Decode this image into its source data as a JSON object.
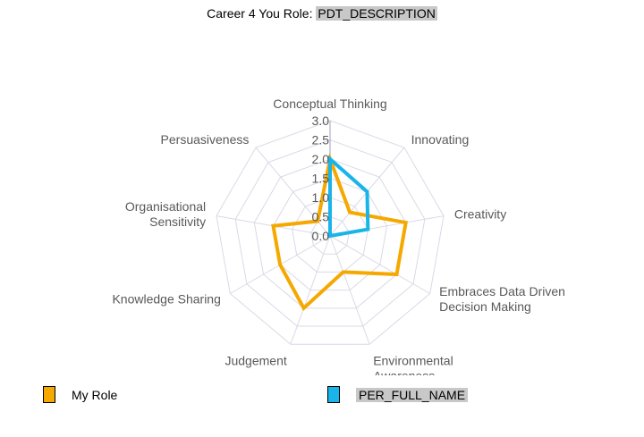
{
  "title": {
    "prefix": "Career 4 You Role:",
    "field": "PDT_DESCRIPTION"
  },
  "chart_data": {
    "type": "radar",
    "axes": [
      "Conceptual Thinking",
      "Innovating",
      "Creativity",
      "Embraces Data Driven Decision Making",
      "Environmental Awareness",
      "Judgement",
      "Knowledge Sharing",
      "Organisational Sensitivity",
      "Persuasiveness"
    ],
    "ticks": [
      "0.0",
      "0.5",
      "1.0",
      "1.5",
      "2.0",
      "2.5",
      "3.0"
    ],
    "range": [
      0,
      3
    ],
    "series": [
      {
        "name": "My Role",
        "color": "#f5a800",
        "values": [
          2,
          0.8,
          2,
          2,
          1,
          2,
          1.5,
          1.5,
          0.5
        ]
      },
      {
        "name": "PER_FULL_NAME",
        "color": "#19b4ea",
        "values": [
          2,
          1.5,
          1,
          0,
          0,
          0,
          0,
          0,
          0
        ]
      }
    ],
    "grid": true,
    "legend_position": "bottom"
  },
  "legend": [
    {
      "label": "My Role",
      "color": "#f5a800"
    },
    {
      "label": "PER_FULL_NAME",
      "color": "#19b4ea"
    }
  ]
}
